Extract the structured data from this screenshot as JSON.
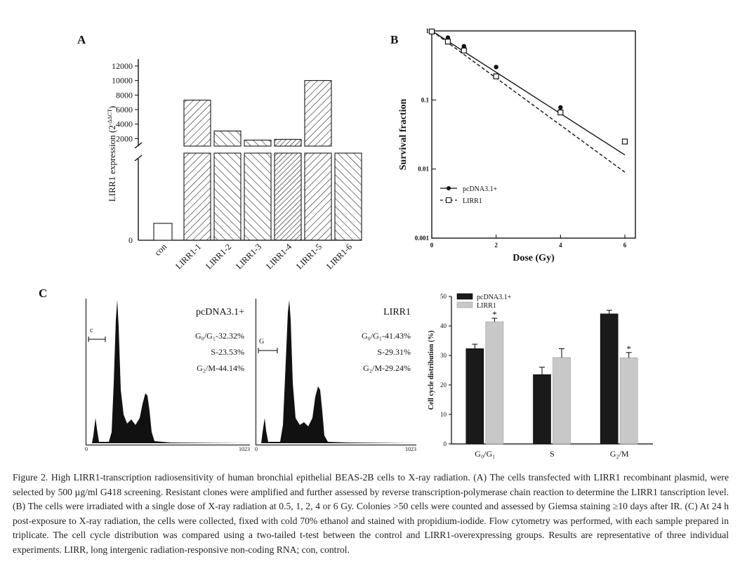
{
  "panels": {
    "a": "A",
    "b": "B",
    "c": "C"
  },
  "chart_a": {
    "type": "bar",
    "ylabel": "LIRR1 expression (2⁻ᐞᐞCᵀ)",
    "ylabel_main": "LIRR1 expression (2",
    "ylabel_sup": "-ΔΔCT",
    "ylabel_close": ")",
    "yticks_upper": [
      "2000",
      "4000",
      "6000",
      "8000",
      "10000",
      "12000"
    ],
    "ytick_zero": "0",
    "categories": [
      "con",
      "LIRR1-1",
      "LIRR1-2",
      "LIRR1-3",
      "LIRR1-4",
      "LIRR1-5",
      "LIRR1-6"
    ],
    "values": [
      1,
      7300,
      3050,
      1800,
      1900,
      10000,
      500
    ],
    "axis_break": true
  },
  "chart_b": {
    "type": "line",
    "xlabel": "Dose (Gy)",
    "ylabel": "Survival fraction",
    "xticks": [
      "0",
      "2",
      "4",
      "6"
    ],
    "yticks": [
      "0.001",
      "0.01",
      "0.1",
      "1"
    ],
    "log_y": true,
    "series": [
      {
        "name": "pcDNA3.1+",
        "x": [
          0,
          0.5,
          1,
          2,
          4,
          6
        ],
        "y": [
          1.0,
          0.8,
          0.6,
          0.3,
          0.078,
          0.025
        ],
        "fit": [
          [
            0,
            1.0
          ],
          [
            6,
            0.016
          ]
        ]
      },
      {
        "name": "LIRR1",
        "x": [
          0,
          0.5,
          1,
          2,
          4,
          6
        ],
        "y": [
          0.98,
          0.7,
          0.52,
          0.22,
          0.066,
          0.025
        ],
        "fit": [
          [
            0,
            1.0
          ],
          [
            6,
            0.009
          ]
        ]
      }
    ]
  },
  "histograms": [
    {
      "name": "pcDNA3.1+",
      "gate": "c",
      "g0g1": "G₀/G₁-32.32%",
      "s": "S-23.53%",
      "g2m": "G₂/M-44.14%",
      "axis_min": "0",
      "axis_max": "1023"
    },
    {
      "name": "LIRR1",
      "gate": "G",
      "g0g1": "G₀/G₁-41.43%",
      "s": "S-29.31%",
      "g2m": "G₂/M-29.24%",
      "axis_min": "0",
      "axis_max": "1023"
    }
  ],
  "chart_c": {
    "type": "bar",
    "ylabel": "Cell cycle distribution (%)",
    "yticks": [
      "0",
      "10",
      "20",
      "30",
      "40",
      "50"
    ],
    "ylim": [
      0,
      50
    ],
    "categories": [
      "G₀/G₁",
      "S",
      "G₂/M"
    ],
    "series": [
      {
        "name": "pcDNA3.1+",
        "color": "#1a1a1a",
        "values": [
          32.3,
          23.5,
          44.1
        ],
        "err": [
          1.5,
          2.5,
          1.2
        ]
      },
      {
        "name": "LIRR1",
        "color": "#c8c8c8",
        "values": [
          41.4,
          29.3,
          29.2
        ],
        "err": [
          1.2,
          3.0,
          1.8
        ]
      }
    ],
    "star": "*"
  },
  "caption": "Figure 2. High LIRR1-transcription radiosensitivity of human bronchial epithelial BEAS-2B cells to X-ray radiation. (A) The cells transfected with LIRR1 recombinant plasmid, were selected by 500 µg/ml G418 screening. Resistant clones were amplified and further assessed by reverse transcription-polymerase chain reaction to determine the LIRR1 tanscription level. (B) The cells were irradiated with a single dose of X-ray radiation at 0.5, 1, 2, 4 or 6 Gy. Colonies >50 cells were counted and assessed by Giemsa staining ≥10 days after IR. (C) At 24 h post-exposure to X-ray radiation, the cells were collected, fixed with cold 70% ethanol and stained with propidium-iodide. Flow cytometry was performed, with each sample prepared in triplicate. The cell cycle distribution was compared using a two-tailed t-test between the control and LIRR1-overexpressing groups. Results are representative of three individual experiments. LIRR, long intergenic radiation-responsive non-coding RNA; con, control."
}
